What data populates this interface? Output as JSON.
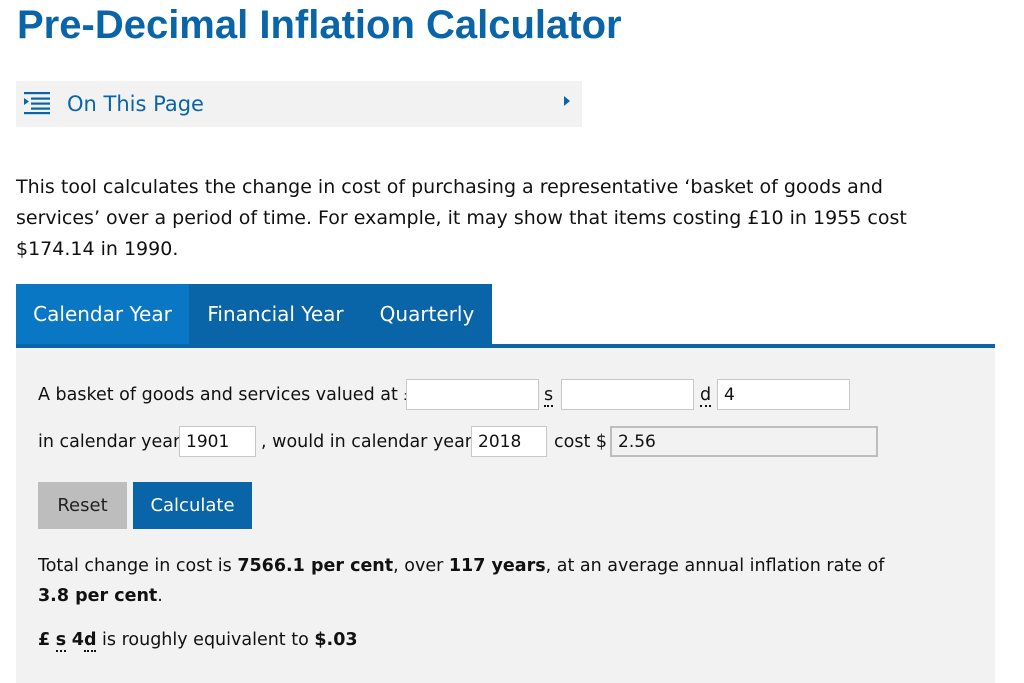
{
  "page": {
    "title": "Pre-Decimal Inflation Calculator"
  },
  "on_this_page": {
    "label": "On This Page",
    "icon": "list-icon",
    "chevron_icon": "chevron-right-icon"
  },
  "intro": {
    "text": "This tool calculates the change in cost of purchasing a representative ‘basket of goods and services’ over a period of time. For example, it may show that items costing £10 in 1955 cost $174.14 in 1990."
  },
  "tabs": [
    {
      "label": "Calendar Year",
      "active": true
    },
    {
      "label": "Financial Year",
      "active": false
    },
    {
      "label": "Quarterly",
      "active": false
    }
  ],
  "form": {
    "basket_label": "A basket of goods and services valued at £",
    "pounds_value": "",
    "shillings_unit": "s",
    "shillings_value": "",
    "pence_unit": "d",
    "pence_value": "4",
    "in_year_label": "in calendar year",
    "from_year": "1901",
    "would_label": ", would in calendar year",
    "to_year": "2018",
    "cost_label": "cost $",
    "cost_value": "2.56"
  },
  "buttons": {
    "reset": "Reset",
    "calculate": "Calculate"
  },
  "result": {
    "prefix": "Total change in cost is ",
    "change": "7566.1 per cent",
    "mid": ", over ",
    "years": "117 years",
    "suffix": ", at an average annual inflation rate of ",
    "rate": "3.8 per cent",
    "end": "."
  },
  "equivalence": {
    "pound_symbol": "£",
    "shilling_unit": "s",
    "pence_amount": "4",
    "pence_unit": "d",
    "middle": " is roughly equivalent to ",
    "dollar_value": "$.03"
  },
  "colors": {
    "brand_blue": "#0a64a8",
    "active_tab_blue": "#0a77c4",
    "panel_grey": "#f2f2f2",
    "reset_grey": "#bdbdbd"
  }
}
